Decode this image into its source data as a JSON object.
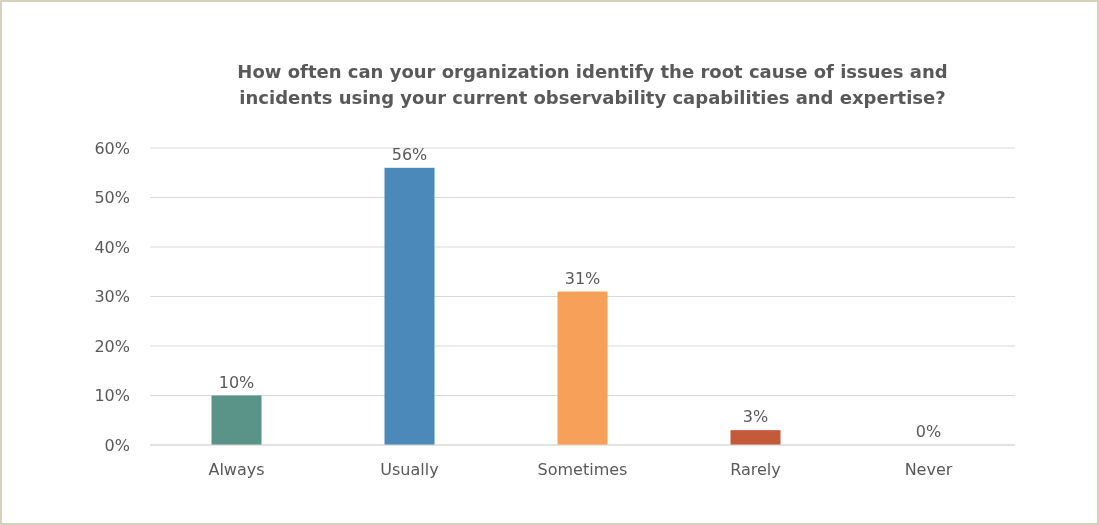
{
  "chart_data": {
    "type": "bar",
    "title": "How often can your organization identify the root cause of issues and incidents using your current observability capabilities and expertise?",
    "categories": [
      "Always",
      "Usually",
      "Sometimes",
      "Rarely",
      "Never"
    ],
    "values": [
      10,
      56,
      31,
      3,
      0
    ],
    "colors": [
      "#5a9488",
      "#4a89b9",
      "#f7a05a",
      "#c55a3a",
      "#a5a5a5"
    ],
    "value_labels": [
      "10%",
      "56%",
      "31%",
      "3%",
      "0%"
    ],
    "ylim": [
      0,
      60
    ],
    "yticks": [
      {
        "value": 0,
        "label": "0%"
      },
      {
        "value": 10,
        "label": "10%"
      },
      {
        "value": 20,
        "label": "20%"
      },
      {
        "value": 30,
        "label": "30%"
      },
      {
        "value": 40,
        "label": "40%"
      },
      {
        "value": 50,
        "label": "50%"
      },
      {
        "value": 60,
        "label": "60%"
      }
    ],
    "grid": "y"
  }
}
